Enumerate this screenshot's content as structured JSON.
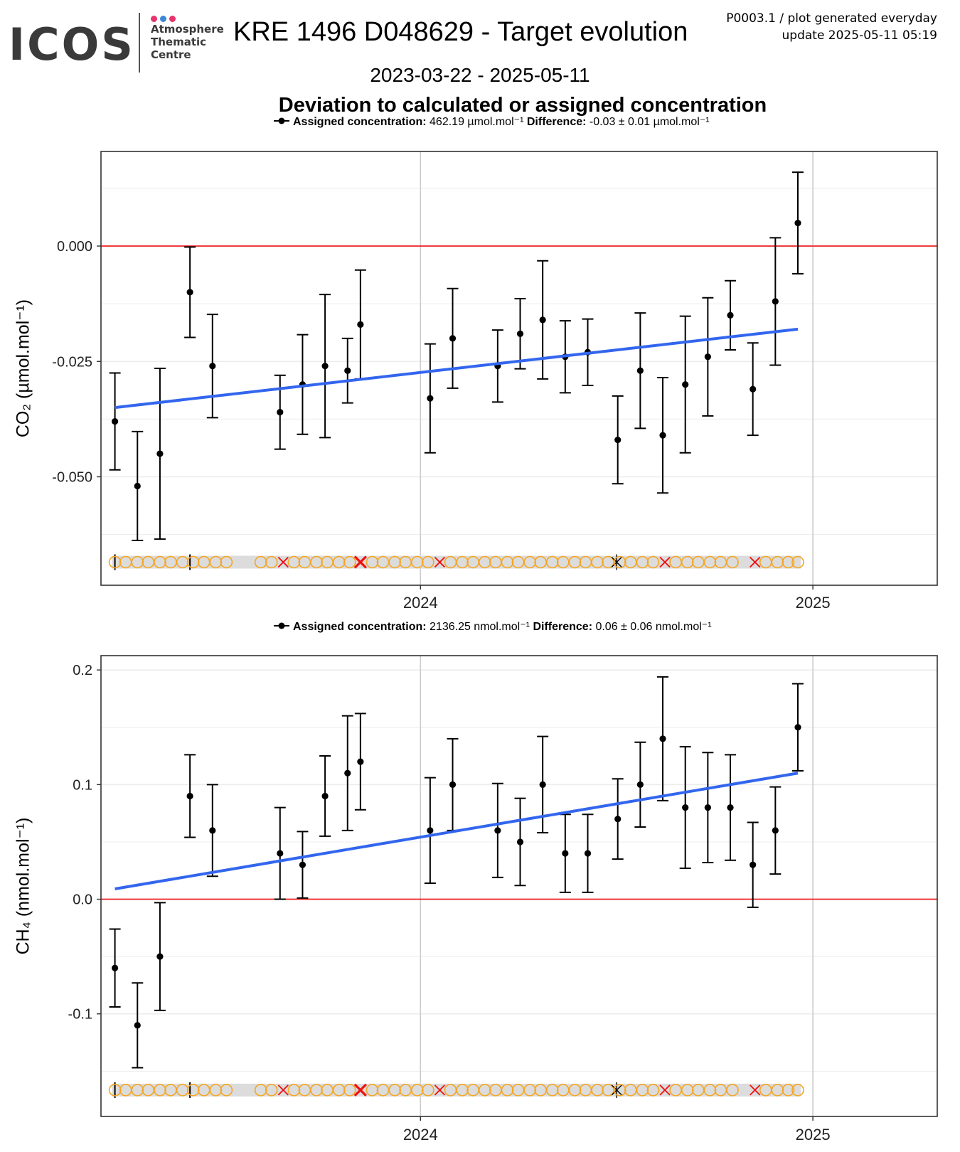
{
  "logo": {
    "word": "ICOS",
    "lines": [
      "Atmosphere",
      "Thematic",
      "Centre"
    ],
    "dot_colors": [
      "#e8336d",
      "#3b88d6",
      "#e8336d"
    ]
  },
  "header": {
    "title": "KRE 1496 D048629 - Target evolution",
    "meta_line1": "P0003.1 / plot generated everyday",
    "meta_line2": "update  2025-05-11 05:19",
    "date_range": "2023-03-22 - 2025-05-11",
    "subtitle": "Deviation to calculated or assigned concentration"
  },
  "colors": {
    "trend": "#3366ee",
    "zero_line": "#ee2222",
    "ok_marker": "#f5a623",
    "flag_marker": "#ee1111",
    "points": "#000000",
    "grid_major": "#cccccc",
    "grid_minor": "#ececec",
    "band": "#dcdcdc"
  },
  "chart_data": [
    {
      "type": "scatter",
      "gas": "CO2",
      "legend": {
        "label_bold": "Assigned concentration:",
        "assigned": "462.19 µmol.mol⁻¹",
        "diff_bold": "Difference:",
        "difference": "-0.03 ± 0.01 µmol.mol⁻¹"
      },
      "ylabel": "CO₂ (µmol.mol⁻¹)",
      "xlabel": "",
      "xlim": [
        "2023-03-09",
        "2025-04-27"
      ],
      "ylim": [
        -0.0735,
        0.0205
      ],
      "yticks": [
        0.0,
        -0.025,
        -0.05
      ],
      "ytick_labels": [
        "0.000",
        "-0.025",
        "-0.050"
      ],
      "yminor": [
        0.0125,
        -0.0125,
        -0.0375,
        -0.0625
      ],
      "xticks": [
        "2024-01-01",
        "2025-01-01"
      ],
      "xtick_labels": [
        "2024",
        "2025"
      ],
      "zero_line": 0.0,
      "points": [
        {
          "x": "2023-03-22",
          "y": -0.038,
          "err": 0.0105
        },
        {
          "x": "2023-04-12",
          "y": -0.052,
          "err": 0.0118
        },
        {
          "x": "2023-05-03",
          "y": -0.045,
          "err": 0.0185
        },
        {
          "x": "2023-05-31",
          "y": -0.01,
          "err": 0.0098
        },
        {
          "x": "2023-06-21",
          "y": -0.026,
          "err": 0.0112
        },
        {
          "x": "2023-08-23",
          "y": -0.036,
          "err": 0.008
        },
        {
          "x": "2023-09-13",
          "y": -0.03,
          "err": 0.0108
        },
        {
          "x": "2023-10-04",
          "y": -0.026,
          "err": 0.0155
        },
        {
          "x": "2023-10-25",
          "y": -0.027,
          "err": 0.007
        },
        {
          "x": "2023-11-06",
          "y": -0.017,
          "err": 0.0118
        },
        {
          "x": "2024-01-10",
          "y": -0.033,
          "err": 0.0118
        },
        {
          "x": "2024-01-31",
          "y": -0.02,
          "err": 0.0108
        },
        {
          "x": "2024-03-13",
          "y": -0.026,
          "err": 0.0078
        },
        {
          "x": "2024-04-03",
          "y": -0.019,
          "err": 0.0076
        },
        {
          "x": "2024-04-24",
          "y": -0.016,
          "err": 0.0128
        },
        {
          "x": "2024-05-15",
          "y": -0.024,
          "err": 0.0078
        },
        {
          "x": "2024-06-05",
          "y": -0.023,
          "err": 0.0072
        },
        {
          "x": "2024-07-03",
          "y": -0.042,
          "err": 0.0095
        },
        {
          "x": "2024-07-24",
          "y": -0.027,
          "err": 0.0125
        },
        {
          "x": "2024-08-14",
          "y": -0.041,
          "err": 0.0125
        },
        {
          "x": "2024-09-04",
          "y": -0.03,
          "err": 0.0148
        },
        {
          "x": "2024-09-25",
          "y": -0.024,
          "err": 0.0128
        },
        {
          "x": "2024-10-16",
          "y": -0.015,
          "err": 0.0075
        },
        {
          "x": "2024-11-06",
          "y": -0.031,
          "err": 0.01
        },
        {
          "x": "2024-11-27",
          "y": -0.012,
          "err": 0.0138
        },
        {
          "x": "2024-12-18",
          "y": 0.005,
          "err": 0.011
        }
      ],
      "trend": {
        "x": [
          "2023-03-22",
          "2024-12-18"
        ],
        "y": [
          -0.035,
          -0.018
        ]
      },
      "status_strip": {
        "y": -0.0685,
        "markers": [
          {
            "x": "2023-03-22",
            "s": "|"
          },
          {
            "x": "2023-03-22",
            "s": "o"
          },
          {
            "x": "2023-04-01",
            "s": "o"
          },
          {
            "x": "2023-04-12",
            "s": "o"
          },
          {
            "x": "2023-04-22",
            "s": "o"
          },
          {
            "x": "2023-05-03",
            "s": "o"
          },
          {
            "x": "2023-05-13",
            "s": "o"
          },
          {
            "x": "2023-05-24",
            "s": "o"
          },
          {
            "x": "2023-05-31",
            "s": "|"
          },
          {
            "x": "2023-06-03",
            "s": "o"
          },
          {
            "x": "2023-06-13",
            "s": "o"
          },
          {
            "x": "2023-06-24",
            "s": "o"
          },
          {
            "x": "2023-07-04",
            "s": "o"
          },
          {
            "x": "2023-08-05",
            "s": "o"
          },
          {
            "x": "2023-08-15",
            "s": "o"
          },
          {
            "x": "2023-08-26",
            "s": "x"
          },
          {
            "x": "2023-09-05",
            "s": "o"
          },
          {
            "x": "2023-09-15",
            "s": "o"
          },
          {
            "x": "2023-09-26",
            "s": "o"
          },
          {
            "x": "2023-10-06",
            "s": "o"
          },
          {
            "x": "2023-10-17",
            "s": "o"
          },
          {
            "x": "2023-10-27",
            "s": "o"
          },
          {
            "x": "2023-11-06",
            "s": "X"
          },
          {
            "x": "2023-11-17",
            "s": "o"
          },
          {
            "x": "2023-11-27",
            "s": "o"
          },
          {
            "x": "2023-12-08",
            "s": "o"
          },
          {
            "x": "2023-12-18",
            "s": "o"
          },
          {
            "x": "2023-12-29",
            "s": "o"
          },
          {
            "x": "2024-01-08",
            "s": "o"
          },
          {
            "x": "2024-01-19",
            "s": "x"
          },
          {
            "x": "2024-01-29",
            "s": "o"
          },
          {
            "x": "2024-02-09",
            "s": "o"
          },
          {
            "x": "2024-02-19",
            "s": "o"
          },
          {
            "x": "2024-03-01",
            "s": "o"
          },
          {
            "x": "2024-03-11",
            "s": "o"
          },
          {
            "x": "2024-03-22",
            "s": "o"
          },
          {
            "x": "2024-04-01",
            "s": "o"
          },
          {
            "x": "2024-04-12",
            "s": "o"
          },
          {
            "x": "2024-04-22",
            "s": "o"
          },
          {
            "x": "2024-05-03",
            "s": "o"
          },
          {
            "x": "2024-05-13",
            "s": "o"
          },
          {
            "x": "2024-05-24",
            "s": "o"
          },
          {
            "x": "2024-06-03",
            "s": "o"
          },
          {
            "x": "2024-06-14",
            "s": "o"
          },
          {
            "x": "2024-06-24",
            "s": "o"
          },
          {
            "x": "2024-07-02",
            "s": "k"
          },
          {
            "x": "2024-07-05",
            "s": "o"
          },
          {
            "x": "2024-07-15",
            "s": "o"
          },
          {
            "x": "2024-07-26",
            "s": "o"
          },
          {
            "x": "2024-08-05",
            "s": "o"
          },
          {
            "x": "2024-08-16",
            "s": "x"
          },
          {
            "x": "2024-08-26",
            "s": "o"
          },
          {
            "x": "2024-09-06",
            "s": "o"
          },
          {
            "x": "2024-09-16",
            "s": "o"
          },
          {
            "x": "2024-09-27",
            "s": "o"
          },
          {
            "x": "2024-10-07",
            "s": "o"
          },
          {
            "x": "2024-10-18",
            "s": "o"
          },
          {
            "x": "2024-11-08",
            "s": "x"
          },
          {
            "x": "2024-11-18",
            "s": "o"
          },
          {
            "x": "2024-11-29",
            "s": "o"
          },
          {
            "x": "2024-12-09",
            "s": "o"
          },
          {
            "x": "2024-12-18",
            "s": "o"
          }
        ]
      }
    },
    {
      "type": "scatter",
      "gas": "CH4",
      "legend": {
        "label_bold": "Assigned concentration:",
        "assigned": "2136.25 nmol.mol⁻¹",
        "diff_bold": "Difference:",
        "difference": "0.06 ± 0.06 nmol.mol⁻¹"
      },
      "ylabel": "CH₄ (nmol.mol⁻¹)",
      "xlabel": "",
      "xlim": [
        "2023-03-09",
        "2025-04-27"
      ],
      "ylim": [
        -0.1895,
        0.2125
      ],
      "yticks": [
        0.2,
        0.1,
        0.0,
        -0.1
      ],
      "ytick_labels": [
        "0.2",
        "0.1",
        "0.0",
        "-0.1"
      ],
      "yminor": [
        0.15,
        0.05,
        -0.05,
        -0.15
      ],
      "xticks": [
        "2024-01-01",
        "2025-01-01"
      ],
      "xtick_labels": [
        "2024",
        "2025"
      ],
      "zero_line": 0.0,
      "points": [
        {
          "x": "2023-03-22",
          "y": -0.06,
          "err": 0.034
        },
        {
          "x": "2023-04-12",
          "y": -0.11,
          "err": 0.037
        },
        {
          "x": "2023-05-03",
          "y": -0.05,
          "err": 0.047
        },
        {
          "x": "2023-05-31",
          "y": 0.09,
          "err": 0.036
        },
        {
          "x": "2023-06-21",
          "y": 0.06,
          "err": 0.04
        },
        {
          "x": "2023-08-23",
          "y": 0.04,
          "err": 0.04
        },
        {
          "x": "2023-09-13",
          "y": 0.03,
          "err": 0.029
        },
        {
          "x": "2023-10-04",
          "y": 0.09,
          "err": 0.035
        },
        {
          "x": "2023-10-25",
          "y": 0.11,
          "err": 0.05
        },
        {
          "x": "2023-11-06",
          "y": 0.12,
          "err": 0.042
        },
        {
          "x": "2024-01-10",
          "y": 0.06,
          "err": 0.046
        },
        {
          "x": "2024-01-31",
          "y": 0.1,
          "err": 0.04
        },
        {
          "x": "2024-03-13",
          "y": 0.06,
          "err": 0.041
        },
        {
          "x": "2024-04-03",
          "y": 0.05,
          "err": 0.038
        },
        {
          "x": "2024-04-24",
          "y": 0.1,
          "err": 0.042
        },
        {
          "x": "2024-05-15",
          "y": 0.04,
          "err": 0.034
        },
        {
          "x": "2024-06-05",
          "y": 0.04,
          "err": 0.034
        },
        {
          "x": "2024-07-03",
          "y": 0.07,
          "err": 0.035
        },
        {
          "x": "2024-07-24",
          "y": 0.1,
          "err": 0.037
        },
        {
          "x": "2024-08-14",
          "y": 0.14,
          "err": 0.054
        },
        {
          "x": "2024-09-04",
          "y": 0.08,
          "err": 0.053
        },
        {
          "x": "2024-09-25",
          "y": 0.08,
          "err": 0.048
        },
        {
          "x": "2024-10-16",
          "y": 0.08,
          "err": 0.046
        },
        {
          "x": "2024-11-06",
          "y": 0.03,
          "err": 0.037
        },
        {
          "x": "2024-11-27",
          "y": 0.06,
          "err": 0.038
        },
        {
          "x": "2024-12-18",
          "y": 0.15,
          "err": 0.038
        }
      ],
      "trend": {
        "x": [
          "2023-03-22",
          "2024-12-18"
        ],
        "y": [
          0.009,
          0.11
        ]
      },
      "status_strip": {
        "y": -0.1665,
        "markers": [
          {
            "x": "2023-03-22",
            "s": "|"
          },
          {
            "x": "2023-03-22",
            "s": "o"
          },
          {
            "x": "2023-04-01",
            "s": "o"
          },
          {
            "x": "2023-04-12",
            "s": "o"
          },
          {
            "x": "2023-04-22",
            "s": "o"
          },
          {
            "x": "2023-05-03",
            "s": "o"
          },
          {
            "x": "2023-05-13",
            "s": "o"
          },
          {
            "x": "2023-05-24",
            "s": "o"
          },
          {
            "x": "2023-05-31",
            "s": "|"
          },
          {
            "x": "2023-06-03",
            "s": "o"
          },
          {
            "x": "2023-06-13",
            "s": "o"
          },
          {
            "x": "2023-06-24",
            "s": "o"
          },
          {
            "x": "2023-07-04",
            "s": "o"
          },
          {
            "x": "2023-08-05",
            "s": "o"
          },
          {
            "x": "2023-08-15",
            "s": "o"
          },
          {
            "x": "2023-08-26",
            "s": "x"
          },
          {
            "x": "2023-09-05",
            "s": "o"
          },
          {
            "x": "2023-09-15",
            "s": "o"
          },
          {
            "x": "2023-09-26",
            "s": "o"
          },
          {
            "x": "2023-10-06",
            "s": "o"
          },
          {
            "x": "2023-10-17",
            "s": "o"
          },
          {
            "x": "2023-10-27",
            "s": "o"
          },
          {
            "x": "2023-11-06",
            "s": "X"
          },
          {
            "x": "2023-11-17",
            "s": "o"
          },
          {
            "x": "2023-11-27",
            "s": "o"
          },
          {
            "x": "2023-12-08",
            "s": "o"
          },
          {
            "x": "2023-12-18",
            "s": "o"
          },
          {
            "x": "2023-12-29",
            "s": "o"
          },
          {
            "x": "2024-01-08",
            "s": "o"
          },
          {
            "x": "2024-01-19",
            "s": "x"
          },
          {
            "x": "2024-01-29",
            "s": "o"
          },
          {
            "x": "2024-02-09",
            "s": "o"
          },
          {
            "x": "2024-02-19",
            "s": "o"
          },
          {
            "x": "2024-03-01",
            "s": "o"
          },
          {
            "x": "2024-03-11",
            "s": "o"
          },
          {
            "x": "2024-03-22",
            "s": "o"
          },
          {
            "x": "2024-04-01",
            "s": "o"
          },
          {
            "x": "2024-04-12",
            "s": "o"
          },
          {
            "x": "2024-04-22",
            "s": "o"
          },
          {
            "x": "2024-05-03",
            "s": "o"
          },
          {
            "x": "2024-05-13",
            "s": "o"
          },
          {
            "x": "2024-05-24",
            "s": "o"
          },
          {
            "x": "2024-06-03",
            "s": "o"
          },
          {
            "x": "2024-06-14",
            "s": "o"
          },
          {
            "x": "2024-06-24",
            "s": "o"
          },
          {
            "x": "2024-07-02",
            "s": "k"
          },
          {
            "x": "2024-07-05",
            "s": "o"
          },
          {
            "x": "2024-07-15",
            "s": "o"
          },
          {
            "x": "2024-07-26",
            "s": "o"
          },
          {
            "x": "2024-08-05",
            "s": "o"
          },
          {
            "x": "2024-08-16",
            "s": "x"
          },
          {
            "x": "2024-08-26",
            "s": "o"
          },
          {
            "x": "2024-09-06",
            "s": "o"
          },
          {
            "x": "2024-09-16",
            "s": "o"
          },
          {
            "x": "2024-09-27",
            "s": "o"
          },
          {
            "x": "2024-10-07",
            "s": "o"
          },
          {
            "x": "2024-10-18",
            "s": "o"
          },
          {
            "x": "2024-11-08",
            "s": "x"
          },
          {
            "x": "2024-11-18",
            "s": "o"
          },
          {
            "x": "2024-11-29",
            "s": "o"
          },
          {
            "x": "2024-12-09",
            "s": "o"
          },
          {
            "x": "2024-12-18",
            "s": "o"
          }
        ]
      }
    }
  ]
}
